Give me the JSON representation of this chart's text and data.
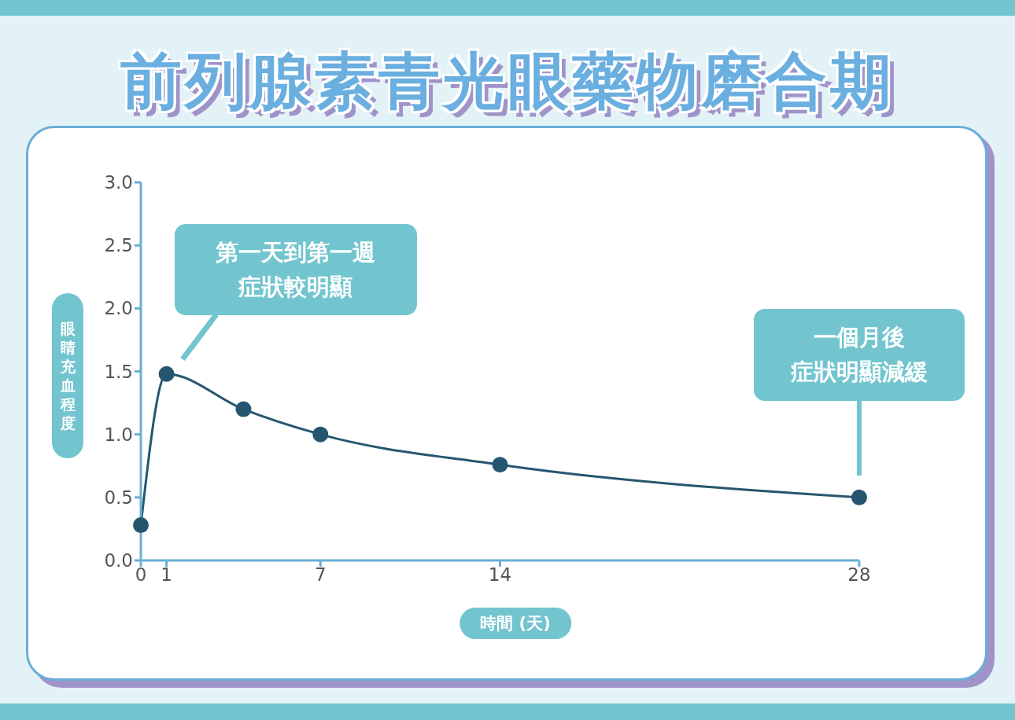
{
  "chart_data": {
    "type": "line",
    "title": "前列腺素青光眼藥物磨合期",
    "xlabel": "時間 (天)",
    "ylabel": "眼睛充血程度",
    "x": [
      0,
      1,
      4,
      7,
      14,
      28
    ],
    "series": [
      {
        "color": "#26566f",
        "values": [
          0.28,
          1.48,
          1.2,
          1.0,
          0.76,
          0.5
        ]
      }
    ],
    "xlim": [
      0,
      28
    ],
    "xticks": [
      0,
      1,
      7,
      14,
      28
    ],
    "ylim": [
      0,
      3
    ],
    "yticks": [
      {
        "value": 0,
        "label": "0.0"
      },
      0.5,
      {
        "value": 1,
        "label": "1.0"
      },
      1.5,
      {
        "value": 2,
        "label": "2.0"
      },
      2.5,
      {
        "value": 3,
        "label": "3.0"
      }
    ],
    "marker": "circle",
    "line_style": "solid",
    "annotations": [
      "第一天到第一週症狀較明顯",
      "一個月後症狀明顯減緩"
    ]
  }
}
